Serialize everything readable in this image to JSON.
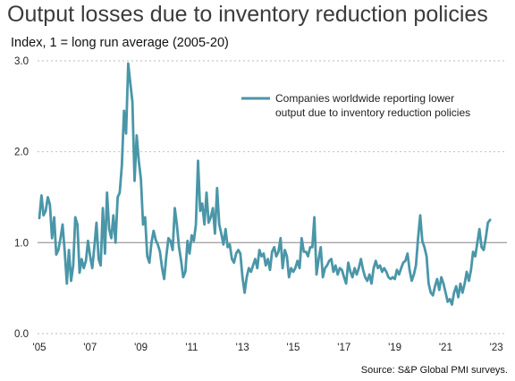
{
  "title": "Output losses due to inventory reduction policies",
  "subtitle": "Index, 1 = long run average (2005-20)",
  "source": "Source: S&P Global PMI surveys.",
  "colors": {
    "series": "#4a96a8",
    "grid": "#b8b8b8",
    "reference_line": "#a6a6a6",
    "title_text": "#3b3b3b"
  },
  "chart_data": {
    "type": "line",
    "title": "Output losses due to inventory reduction policies",
    "ylabel": "Index, 1 = long run average (2005-20)",
    "xlabel": "",
    "ylim": [
      0,
      3
    ],
    "xlim": [
      "2005-01",
      "2023-06"
    ],
    "yticks": [
      "0.0",
      "1.0",
      "2.0",
      "3.0"
    ],
    "xticks": [
      "'05",
      "'07",
      "'09",
      "'11",
      "'13",
      "'15",
      "'17",
      "'19",
      "'21",
      "'23"
    ],
    "grid": "horizontal dashed",
    "reference_line": 1.0,
    "legend": {
      "position": "top-right",
      "line1": "Companies worldwide reporting lower",
      "line2": "output due to inventory reduction policies"
    },
    "series": [
      {
        "name": "Companies worldwide reporting lower output due to inventory reduction policies",
        "start": "2005-01",
        "frequency": "monthly",
        "values": [
          1.27,
          1.52,
          1.3,
          1.35,
          1.5,
          1.42,
          1.05,
          1.28,
          0.87,
          0.92,
          1.05,
          1.2,
          0.9,
          0.55,
          0.92,
          0.58,
          0.75,
          1.28,
          1.2,
          0.67,
          0.82,
          0.72,
          0.8,
          1.02,
          0.85,
          0.72,
          0.95,
          1.22,
          0.82,
          0.75,
          1.38,
          0.88,
          1.55,
          1.15,
          1.05,
          1.3,
          1.0,
          1.5,
          1.55,
          1.85,
          2.45,
          2.2,
          2.97,
          2.75,
          2.55,
          1.68,
          2.18,
          1.9,
          1.7,
          1.2,
          1.28,
          0.85,
          0.78,
          1.0,
          1.13,
          1.03,
          0.98,
          0.9,
          0.72,
          0.6,
          0.85,
          1.05,
          1.02,
          0.92,
          1.38,
          1.2,
          0.95,
          0.8,
          0.62,
          0.68,
          1.02,
          0.88,
          1.08,
          1.02,
          1.2,
          1.9,
          1.35,
          1.43,
          1.2,
          1.55,
          1.22,
          1.28,
          1.38,
          1.1,
          1.6,
          1.2,
          1.1,
          0.98,
          1.15,
          0.95,
          0.98,
          0.82,
          0.78,
          0.88,
          0.92,
          0.88,
          0.62,
          0.45,
          0.62,
          0.72,
          0.68,
          0.75,
          0.82,
          0.72,
          0.92,
          0.85,
          0.88,
          0.75,
          0.82,
          0.7,
          0.9,
          0.95,
          0.85,
          0.9,
          1.05,
          0.72,
          0.92,
          0.85,
          0.62,
          0.72,
          0.68,
          0.72,
          0.8,
          0.72,
          1.05,
          0.9,
          0.9,
          0.85,
          0.95,
          0.95,
          1.28,
          0.65,
          0.82,
          0.95,
          0.62,
          0.72,
          0.75,
          0.8,
          0.82,
          0.68,
          0.75,
          0.65,
          0.72,
          0.7,
          0.62,
          0.55,
          0.78,
          0.68,
          0.62,
          0.72,
          0.65,
          0.72,
          0.82,
          0.7,
          0.62,
          0.58,
          0.65,
          0.55,
          0.72,
          0.8,
          0.72,
          0.75,
          0.68,
          0.72,
          0.68,
          0.62,
          0.6,
          0.62,
          0.6,
          0.7,
          0.65,
          0.72,
          0.78,
          0.8,
          0.88,
          0.7,
          0.58,
          0.65,
          0.75,
          1.05,
          1.3,
          1.02,
          0.95,
          0.85,
          0.55,
          0.45,
          0.42,
          0.52,
          0.6,
          0.48,
          0.62,
          0.55,
          0.45,
          0.35,
          0.38,
          0.32,
          0.45,
          0.52,
          0.4,
          0.55,
          0.45,
          0.55,
          0.68,
          0.58,
          0.7,
          0.9,
          0.85,
          1.0,
          1.15,
          0.95,
          0.92,
          1.05,
          1.22,
          1.25
        ]
      }
    ]
  }
}
